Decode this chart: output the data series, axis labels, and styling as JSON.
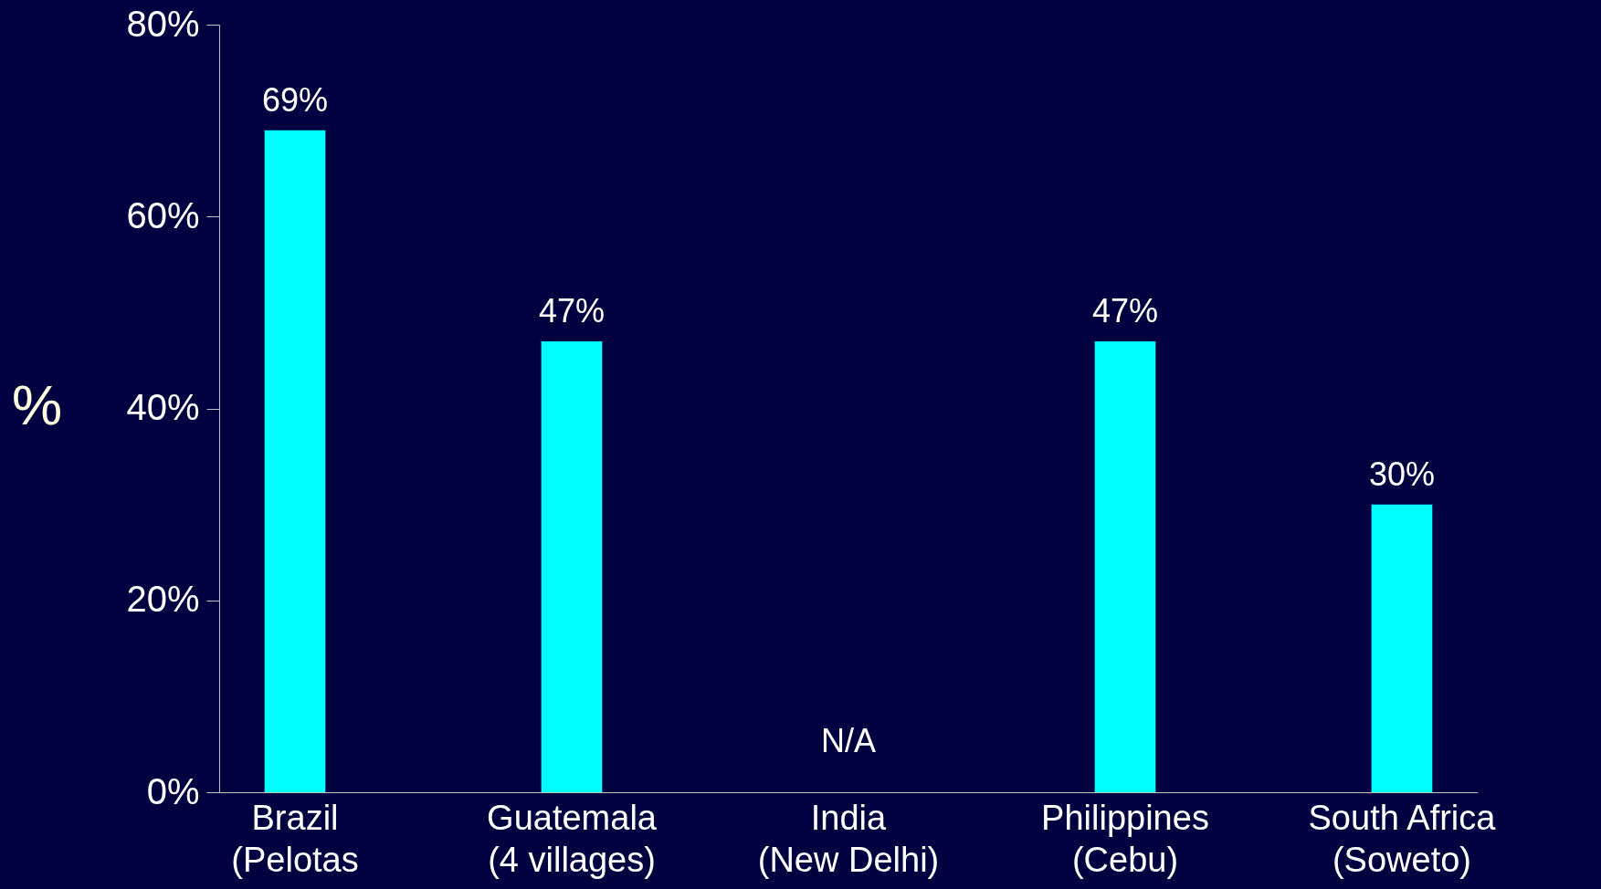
{
  "chart_data": {
    "type": "bar",
    "ylabel": "%",
    "categories": [
      "Brazil\n(Pelotas",
      "Guatemala\n(4 villages)",
      "India\n(New Delhi)",
      "Philippines\n(Cebu)",
      "South Africa\n(Soweto)"
    ],
    "values": [
      69,
      47,
      null,
      47,
      30
    ],
    "value_labels": [
      "69%",
      "47%",
      null,
      "47%",
      "30%"
    ],
    "color": "#00ffff",
    "ylim": [
      0,
      80
    ],
    "yticks": [
      {
        "value": 0,
        "label": "0%"
      },
      {
        "value": 20,
        "label": "20%"
      },
      {
        "value": 40,
        "label": "40%"
      },
      {
        "value": 60,
        "label": "60%"
      },
      {
        "value": 80,
        "label": "80%"
      }
    ],
    "annotations": [
      "N/A"
    ],
    "grid": false
  }
}
